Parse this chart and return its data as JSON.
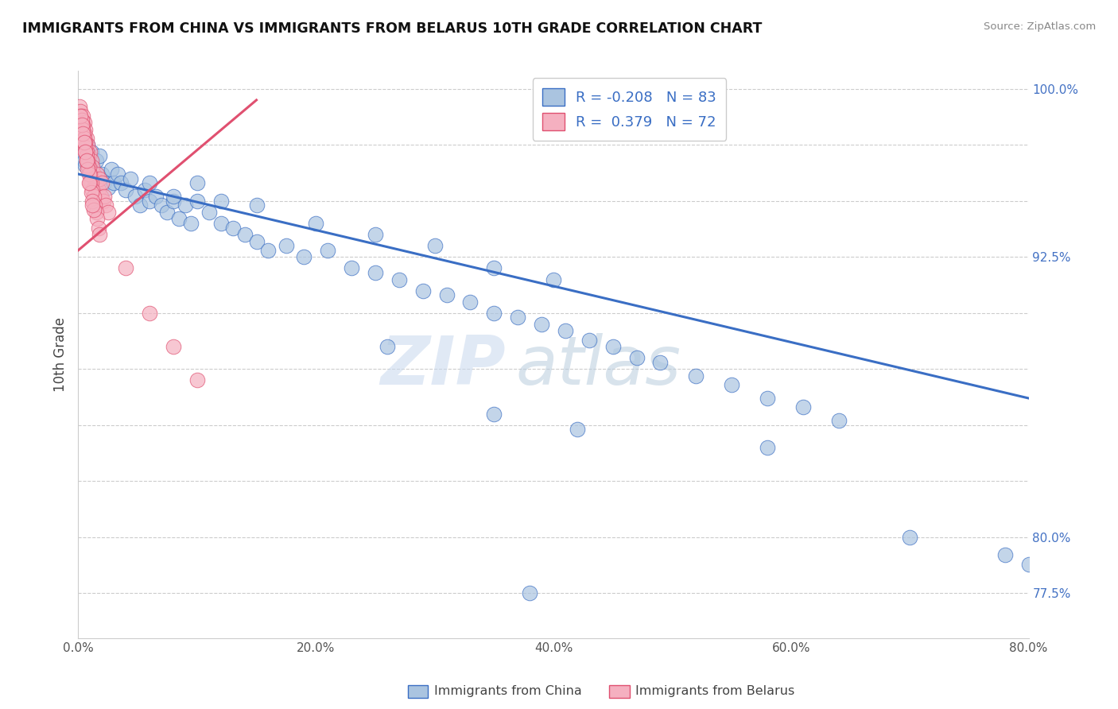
{
  "title": "IMMIGRANTS FROM CHINA VS IMMIGRANTS FROM BELARUS 10TH GRADE CORRELATION CHART",
  "source": "Source: ZipAtlas.com",
  "ylabel": "10th Grade",
  "x_min": 0.0,
  "x_max": 0.8,
  "y_min": 0.755,
  "y_max": 1.008,
  "china_color": "#aac4e0",
  "belarus_color": "#f5b0c0",
  "china_line_color": "#3a6ec4",
  "belarus_line_color": "#e05070",
  "china_R": -0.208,
  "china_N": 83,
  "belarus_R": 0.379,
  "belarus_N": 72,
  "legend_china_label": "Immigrants from China",
  "legend_belarus_label": "Immigrants from Belarus",
  "watermark_part1": "ZIP",
  "watermark_part2": "atlas",
  "background_color": "#ffffff",
  "china_scatter_x": [
    0.002,
    0.003,
    0.004,
    0.005,
    0.006,
    0.007,
    0.008,
    0.009,
    0.01,
    0.01,
    0.011,
    0.012,
    0.013,
    0.015,
    0.016,
    0.018,
    0.02,
    0.022,
    0.025,
    0.028,
    0.03,
    0.033,
    0.036,
    0.04,
    0.044,
    0.048,
    0.052,
    0.056,
    0.06,
    0.065,
    0.07,
    0.075,
    0.08,
    0.085,
    0.09,
    0.095,
    0.1,
    0.11,
    0.12,
    0.13,
    0.14,
    0.15,
    0.16,
    0.175,
    0.19,
    0.21,
    0.23,
    0.25,
    0.27,
    0.29,
    0.31,
    0.33,
    0.35,
    0.37,
    0.39,
    0.41,
    0.43,
    0.45,
    0.47,
    0.49,
    0.52,
    0.55,
    0.58,
    0.61,
    0.64,
    0.06,
    0.08,
    0.1,
    0.12,
    0.15,
    0.2,
    0.25,
    0.3,
    0.35,
    0.4,
    0.26,
    0.35,
    0.42,
    0.58,
    0.7,
    0.78,
    0.8,
    0.38
  ],
  "china_scatter_y": [
    0.975,
    0.972,
    0.97,
    0.968,
    0.966,
    0.972,
    0.975,
    0.968,
    0.97,
    0.964,
    0.972,
    0.965,
    0.96,
    0.968,
    0.962,
    0.97,
    0.962,
    0.958,
    0.956,
    0.964,
    0.958,
    0.962,
    0.958,
    0.955,
    0.96,
    0.952,
    0.948,
    0.955,
    0.95,
    0.952,
    0.948,
    0.945,
    0.95,
    0.942,
    0.948,
    0.94,
    0.95,
    0.945,
    0.94,
    0.938,
    0.935,
    0.932,
    0.928,
    0.93,
    0.925,
    0.928,
    0.92,
    0.918,
    0.915,
    0.91,
    0.908,
    0.905,
    0.9,
    0.898,
    0.895,
    0.892,
    0.888,
    0.885,
    0.88,
    0.878,
    0.872,
    0.868,
    0.862,
    0.858,
    0.852,
    0.958,
    0.952,
    0.958,
    0.95,
    0.948,
    0.94,
    0.935,
    0.93,
    0.92,
    0.915,
    0.885,
    0.855,
    0.848,
    0.84,
    0.8,
    0.792,
    0.788,
    0.775
  ],
  "belarus_scatter_x": [
    0.001,
    0.002,
    0.002,
    0.003,
    0.003,
    0.004,
    0.004,
    0.005,
    0.005,
    0.006,
    0.006,
    0.007,
    0.007,
    0.008,
    0.009,
    0.01,
    0.011,
    0.012,
    0.013,
    0.014,
    0.015,
    0.016,
    0.017,
    0.018,
    0.019,
    0.02,
    0.021,
    0.022,
    0.023,
    0.025,
    0.004,
    0.005,
    0.006,
    0.007,
    0.008,
    0.009,
    0.01,
    0.011,
    0.012,
    0.013,
    0.014,
    0.015,
    0.016,
    0.017,
    0.018,
    0.003,
    0.004,
    0.005,
    0.006,
    0.007,
    0.008,
    0.009,
    0.01,
    0.011,
    0.012,
    0.013,
    0.005,
    0.006,
    0.007,
    0.008,
    0.002,
    0.003,
    0.004,
    0.005,
    0.006,
    0.007,
    0.009,
    0.012,
    0.04,
    0.06,
    0.08,
    0.1
  ],
  "belarus_scatter_y": [
    0.992,
    0.99,
    0.988,
    0.985,
    0.982,
    0.988,
    0.98,
    0.985,
    0.978,
    0.982,
    0.975,
    0.978,
    0.972,
    0.975,
    0.97,
    0.972,
    0.968,
    0.965,
    0.962,
    0.96,
    0.958,
    0.962,
    0.955,
    0.96,
    0.952,
    0.958,
    0.95,
    0.952,
    0.948,
    0.945,
    0.984,
    0.98,
    0.976,
    0.972,
    0.968,
    0.965,
    0.962,
    0.958,
    0.955,
    0.952,
    0.948,
    0.945,
    0.942,
    0.938,
    0.935,
    0.986,
    0.982,
    0.978,
    0.974,
    0.97,
    0.966,
    0.962,
    0.958,
    0.954,
    0.95,
    0.946,
    0.976,
    0.972,
    0.968,
    0.964,
    0.988,
    0.984,
    0.98,
    0.976,
    0.972,
    0.968,
    0.958,
    0.948,
    0.92,
    0.9,
    0.885,
    0.87
  ],
  "china_trend_x": [
    0.0,
    0.8
  ],
  "china_trend_y": [
    0.962,
    0.862
  ],
  "belarus_trend_x": [
    0.0,
    0.15
  ],
  "belarus_trend_y": [
    0.928,
    0.995
  ],
  "y_ticks": [
    0.775,
    0.8,
    0.825,
    0.85,
    0.875,
    0.9,
    0.925,
    0.95,
    0.975,
    1.0
  ],
  "y_right_labels": [
    "77.5%",
    "80.0%",
    "",
    "",
    "",
    "",
    "92.5%",
    "",
    "",
    "100.0%"
  ],
  "x_ticks": [
    0.0,
    0.1,
    0.2,
    0.3,
    0.4,
    0.5,
    0.6,
    0.7,
    0.8
  ],
  "x_tick_labels": [
    "0.0%",
    "",
    "20.0%",
    "",
    "40.0%",
    "",
    "60.0%",
    "",
    "80.0%"
  ]
}
